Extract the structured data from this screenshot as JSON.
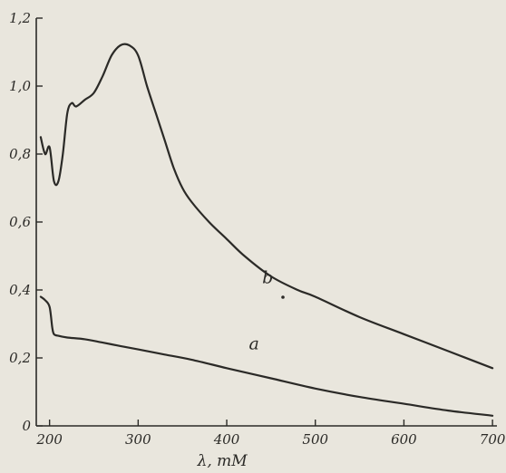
{
  "chart_data": {
    "type": "line",
    "title": "",
    "xlabel": "λ, mM",
    "ylabel": "",
    "xlim": [
      185,
      705
    ],
    "ylim": [
      0,
      1.2
    ],
    "x_ticks": [
      200,
      300,
      400,
      500,
      600,
      700
    ],
    "y_ticks": [
      0,
      0.2,
      0.4,
      0.6,
      0.8,
      1.0,
      1.2
    ],
    "x_tick_labels": [
      "200",
      "300",
      "400",
      "500",
      "600",
      "700"
    ],
    "y_tick_labels": [
      "0",
      "0,2",
      "0,4",
      "0,6",
      "0,8",
      "1,0",
      "1,2"
    ],
    "grid": false,
    "legend": "none",
    "colors": {
      "ink": "#2b2a27",
      "paper": "#e9e6dd"
    },
    "series": [
      {
        "name": "b",
        "x": [
          190,
          195,
          200,
          205,
          210,
          215,
          220,
          225,
          230,
          240,
          250,
          260,
          270,
          280,
          290,
          300,
          310,
          320,
          330,
          340,
          350,
          360,
          380,
          400,
          420,
          450,
          480,
          500,
          550,
          600,
          650,
          700
        ],
        "y": [
          0.85,
          0.8,
          0.82,
          0.72,
          0.72,
          0.8,
          0.92,
          0.95,
          0.94,
          0.96,
          0.98,
          1.03,
          1.09,
          1.12,
          1.12,
          1.09,
          1.0,
          0.92,
          0.84,
          0.76,
          0.7,
          0.66,
          0.6,
          0.55,
          0.5,
          0.44,
          0.4,
          0.38,
          0.32,
          0.27,
          0.22,
          0.17
        ]
      },
      {
        "name": "a",
        "x": [
          190,
          195,
          200,
          203,
          205,
          210,
          220,
          240,
          260,
          280,
          300,
          330,
          360,
          400,
          450,
          500,
          550,
          600,
          650,
          700
        ],
        "y": [
          0.38,
          0.37,
          0.35,
          0.29,
          0.27,
          0.265,
          0.26,
          0.255,
          0.245,
          0.235,
          0.225,
          0.21,
          0.195,
          0.17,
          0.14,
          0.11,
          0.085,
          0.065,
          0.045,
          0.03
        ]
      }
    ]
  }
}
